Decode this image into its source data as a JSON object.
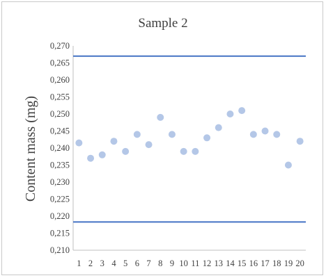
{
  "chart_data": {
    "type": "scatter",
    "title": "Sample 2",
    "xlabel": "",
    "ylabel": "Content mass (mg)",
    "x": [
      1,
      2,
      3,
      4,
      5,
      6,
      7,
      8,
      9,
      10,
      11,
      12,
      13,
      14,
      15,
      16,
      17,
      18,
      19,
      20
    ],
    "x_tick_labels": [
      "1",
      "2",
      "3",
      "4",
      "5",
      "6",
      "7",
      "8",
      "9",
      "10",
      "11",
      "12",
      "13",
      "14",
      "15",
      "16",
      "17",
      "18",
      "19",
      "20"
    ],
    "y_tick_labels": [
      "0,210",
      "0,215",
      "0,220",
      "0,225",
      "0,230",
      "0,235",
      "0,240",
      "0,245",
      "0,250",
      "0,255",
      "0,260",
      "0,265",
      "0,270"
    ],
    "y_ticks": [
      0.21,
      0.215,
      0.22,
      0.225,
      0.23,
      0.235,
      0.24,
      0.245,
      0.25,
      0.255,
      0.26,
      0.265,
      0.27
    ],
    "ylim": [
      0.21,
      0.27
    ],
    "series": [
      {
        "values": [
          0.2415,
          0.237,
          0.238,
          0.242,
          0.239,
          0.244,
          0.241,
          0.249,
          0.244,
          0.239,
          0.239,
          0.243,
          0.246,
          0.25,
          0.251,
          0.244,
          0.245,
          0.244,
          0.235,
          0.242
        ],
        "color": "#b4c7e7"
      }
    ],
    "reference_lines": [
      {
        "value": 0.267,
        "color": "#4472c4"
      },
      {
        "value": 0.2183,
        "color": "#4472c4"
      }
    ],
    "grid": false,
    "legend": "none",
    "axis_color": "#bfbfbf"
  }
}
